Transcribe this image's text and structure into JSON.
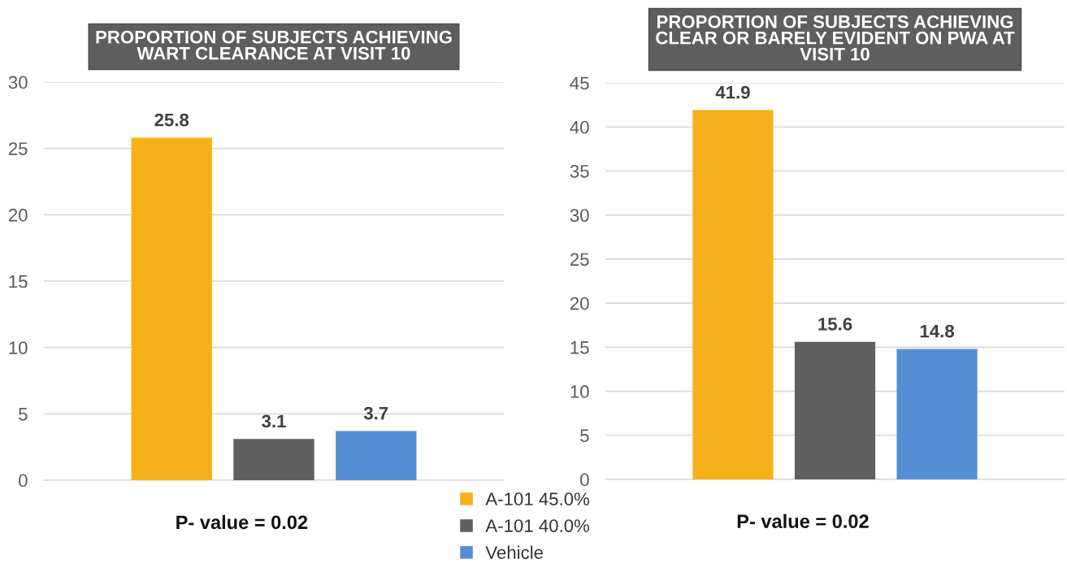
{
  "chart_data": [
    {
      "type": "bar",
      "title": "PROPORTION OF SUBJECTS ACHIEVING\nWART CLEARANCE AT VISIT 10",
      "categories": [
        null
      ],
      "series": [
        {
          "name": "A-101 45.0%",
          "color": "#f6b11a",
          "values": [
            25.8
          ]
        },
        {
          "name": "A-101 40.0%",
          "color": "#5f5f5f",
          "values": [
            3.1
          ]
        },
        {
          "name": "Vehicle",
          "color": "#558ed5",
          "values": [
            3.7
          ]
        }
      ],
      "ylim": [
        0,
        30
      ],
      "yticks": [
        0,
        5,
        10,
        15,
        20,
        25,
        30
      ],
      "grid": "y",
      "tick_labels": "y",
      "data_labels": true,
      "legend": "bottom right",
      "annotations": [
        "P- value = 0.02"
      ]
    },
    {
      "type": "bar",
      "title": "PROPORTION OF SUBJECTS ACHIEVING\nCLEAR OR BARELY EVIDENT ON PWA AT\nVISIT 10",
      "categories": [
        null
      ],
      "series": [
        {
          "color": "#f6b11a",
          "values": [
            41.9
          ]
        },
        {
          "color": "#5f5f5f",
          "values": [
            15.6
          ]
        },
        {
          "color": "#558ed5",
          "values": [
            14.8
          ]
        }
      ],
      "ylim": [
        0,
        45
      ],
      "yticks": [
        0,
        5,
        10,
        15,
        20,
        25,
        30,
        35,
        40,
        45
      ],
      "grid": "y",
      "tick_labels": "y",
      "data_labels": true,
      "annotations": [
        "P- value = 0.02"
      ]
    }
  ]
}
